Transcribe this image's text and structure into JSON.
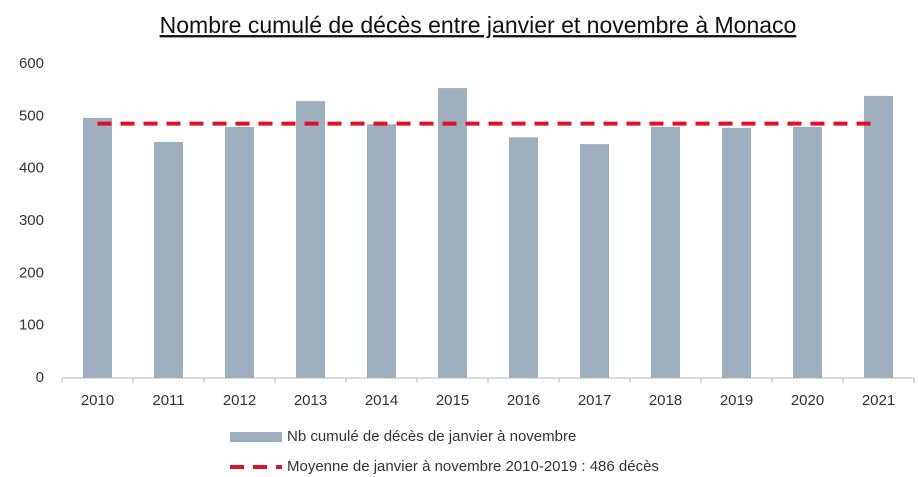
{
  "chart_data": {
    "type": "bar",
    "title": "Nombre cumulé de décès entre janvier et novembre à Monaco",
    "categories": [
      "2010",
      "2011",
      "2012",
      "2013",
      "2014",
      "2015",
      "2016",
      "2017",
      "2018",
      "2019",
      "2020",
      "2021"
    ],
    "series": [
      {
        "name": "Nb cumulé de décès de janvier à novembre",
        "color": "#9eb0c0",
        "type": "bar",
        "values": [
          497,
          451,
          480,
          529,
          485,
          554,
          460,
          447,
          480,
          478,
          480,
          539
        ]
      },
      {
        "name": "Moyenne de janvier à novembre 2010-2019 : 486 décès",
        "color": "#e0102a",
        "type": "line",
        "dashed": true,
        "values": [
          486,
          486,
          486,
          486,
          486,
          486,
          486,
          486,
          486,
          486,
          486,
          486
        ]
      }
    ],
    "ylim": [
      0,
      600
    ],
    "yticks": [
      0,
      100,
      200,
      300,
      400,
      500,
      600
    ],
    "grid": false
  }
}
